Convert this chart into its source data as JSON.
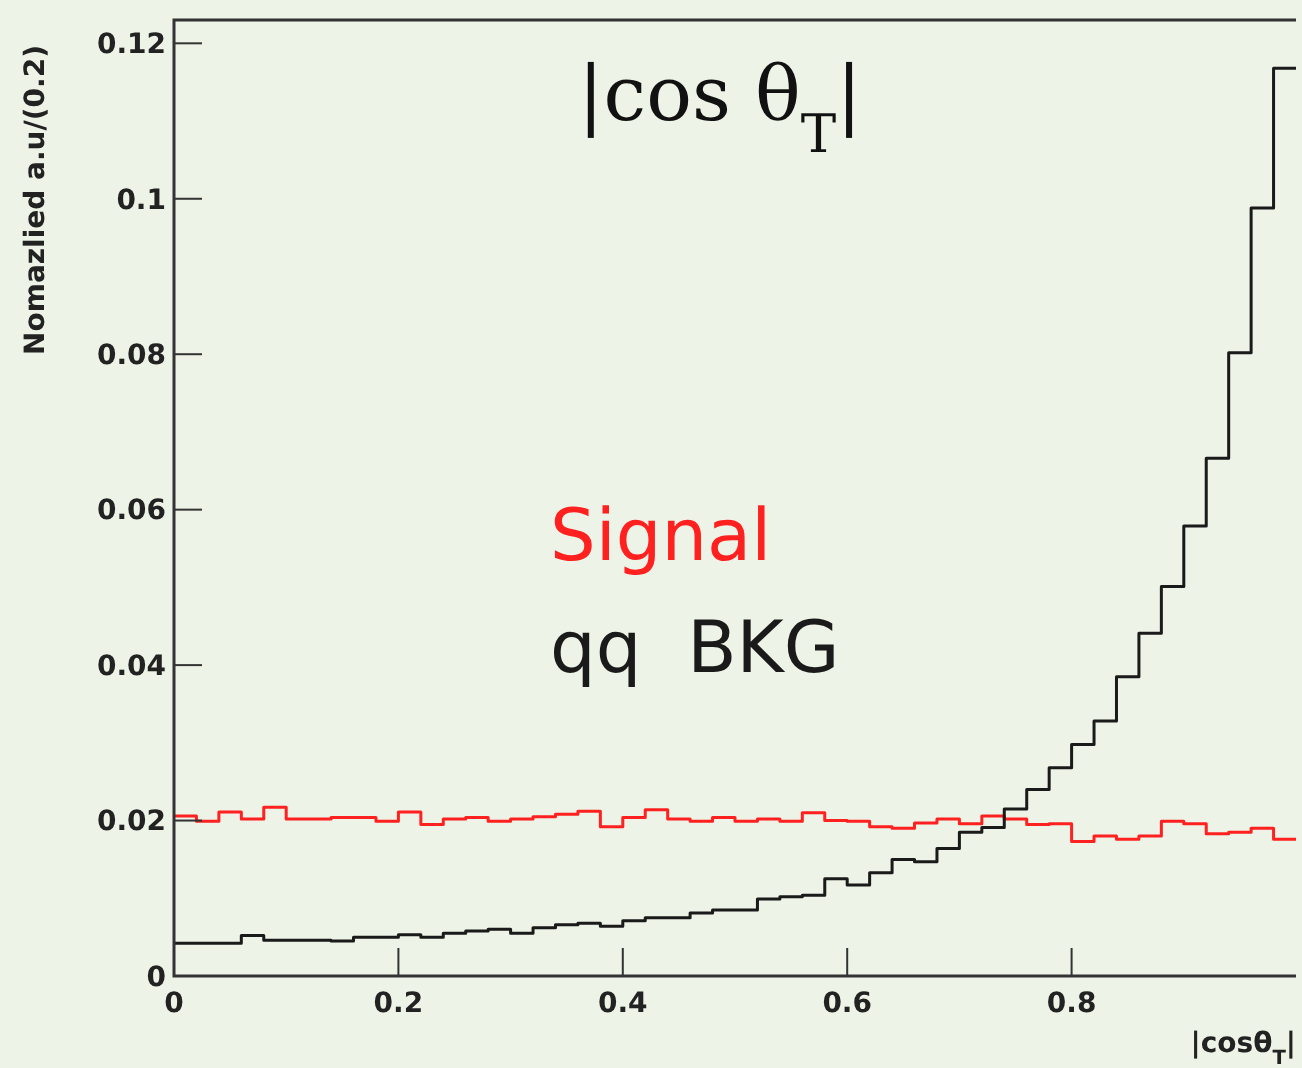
{
  "chart_data": {
    "type": "histogram",
    "title": "|cos θ$_{T}$|",
    "xlabel": "|cosθ$_{T}$|",
    "ylabel": "Nomazlied a.u/(0.2)",
    "bins": [
      0,
      0.02,
      0.04,
      0.06,
      0.08,
      0.1,
      0.12,
      0.14,
      0.16,
      0.18,
      0.2,
      0.22,
      0.24,
      0.26,
      0.28,
      0.3,
      0.32,
      0.34,
      0.36,
      0.38,
      0.4,
      0.42,
      0.44,
      0.46,
      0.48,
      0.5,
      0.52,
      0.54,
      0.56,
      0.58,
      0.6,
      0.62,
      0.64,
      0.66,
      0.68,
      0.7,
      0.72,
      0.74,
      0.76,
      0.78,
      0.8,
      0.82,
      0.84,
      0.86,
      0.88,
      0.9,
      0.92,
      0.94,
      0.96,
      0.98,
      1
    ],
    "series": [
      {
        "name": "Signal",
        "color": "#ff2020",
        "values": [
          0.0206,
          0.0199,
          0.0211,
          0.0202,
          0.0217,
          0.0202,
          0.0202,
          0.0204,
          0.0204,
          0.0199,
          0.0211,
          0.0195,
          0.0202,
          0.0204,
          0.0199,
          0.0202,
          0.0205,
          0.0208,
          0.0212,
          0.0192,
          0.0204,
          0.0214,
          0.0202,
          0.0199,
          0.0204,
          0.0199,
          0.0202,
          0.0199,
          0.021,
          0.02,
          0.0199,
          0.0192,
          0.019,
          0.0197,
          0.0202,
          0.0196,
          0.0206,
          0.0202,
          0.0195,
          0.0196,
          0.0173,
          0.018,
          0.0176,
          0.018,
          0.0199,
          0.0196,
          0.0183,
          0.0185,
          0.019,
          0.0176
        ]
      },
      {
        "name": "qq  BKG",
        "color": "#1a1a1a",
        "values": [
          0.0042,
          0.0042,
          0.0042,
          0.0052,
          0.0046,
          0.0046,
          0.0046,
          0.0045,
          0.005,
          0.005,
          0.0053,
          0.005,
          0.0055,
          0.0058,
          0.006,
          0.0055,
          0.0062,
          0.0066,
          0.0068,
          0.0064,
          0.0071,
          0.0075,
          0.0075,
          0.0081,
          0.0085,
          0.0085,
          0.0099,
          0.0102,
          0.0104,
          0.0125,
          0.0117,
          0.0133,
          0.015,
          0.0147,
          0.0164,
          0.0185,
          0.0191,
          0.0215,
          0.024,
          0.0268,
          0.0298,
          0.0328,
          0.0385,
          0.0441,
          0.0501,
          0.0579,
          0.0666,
          0.0802,
          0.0988,
          0.1168
        ]
      }
    ],
    "xlim": [
      0,
      1
    ],
    "xticks": [
      0,
      0.2,
      0.4,
      0.6,
      0.8
    ],
    "ylim": [
      0,
      0.123
    ],
    "yticks": [
      0,
      0.02,
      0.04,
      0.06,
      0.08,
      0.1,
      0.12
    ],
    "legend": "left",
    "grid": false
  }
}
